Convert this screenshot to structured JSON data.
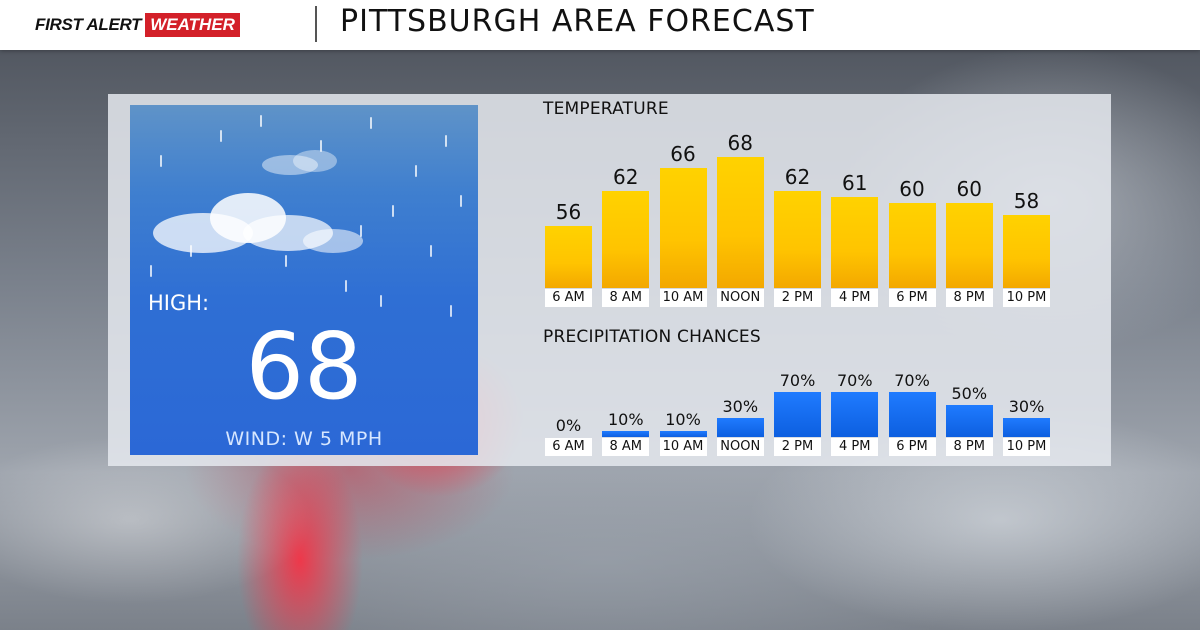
{
  "header": {
    "brand_first": "FIRST ALERT",
    "brand_weather": "WEATHER",
    "title": "PITTSBURGH AREA FORECAST"
  },
  "card": {
    "high_label": "HIGH:",
    "high_value": "68",
    "wind": "WIND: W 5 MPH"
  },
  "colors": {
    "brand_red": "#d32029",
    "temp_bar": "#ffc400",
    "precip_bar": "#0d5fe0",
    "card_blue": "#2f6fd4"
  },
  "chart_data": [
    {
      "type": "bar",
      "title": "TEMPERATURE",
      "categories": [
        "6 AM",
        "8 AM",
        "10 AM",
        "NOON",
        "2 PM",
        "4 PM",
        "6 PM",
        "8 PM",
        "10 PM"
      ],
      "values": [
        56,
        62,
        66,
        68,
        62,
        61,
        60,
        60,
        58
      ],
      "data_labels": [
        "56",
        "62",
        "66",
        "68",
        "62",
        "61",
        "60",
        "60",
        "58"
      ],
      "ylim": [
        50,
        70
      ],
      "grid": false
    },
    {
      "type": "bar",
      "title": "PRECIPITATION CHANCES",
      "categories": [
        "6 AM",
        "8 AM",
        "10 AM",
        "NOON",
        "2 PM",
        "4 PM",
        "6 PM",
        "8 PM",
        "10 PM"
      ],
      "values": [
        0,
        10,
        10,
        30,
        70,
        70,
        70,
        50,
        30
      ],
      "data_labels": [
        "0%",
        "10%",
        "10%",
        "30%",
        "70%",
        "70%",
        "70%",
        "50%",
        "30%"
      ],
      "ylim": [
        0,
        100
      ],
      "grid": false
    }
  ]
}
